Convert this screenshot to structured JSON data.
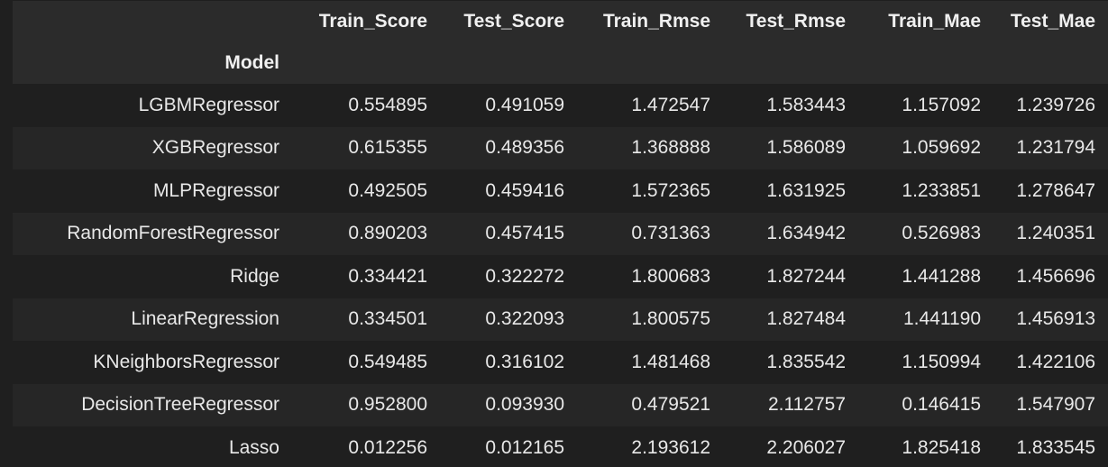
{
  "table": {
    "columns": [
      "Train_Score",
      "Test_Score",
      "Train_Rmse",
      "Test_Rmse",
      "Train_Mae",
      "Test_Mae"
    ],
    "index_name": "Model",
    "rows": [
      {
        "model": "LGBMRegressor",
        "values": [
          "0.554895",
          "0.491059",
          "1.472547",
          "1.583443",
          "1.157092",
          "1.239726"
        ]
      },
      {
        "model": "XGBRegressor",
        "values": [
          "0.615355",
          "0.489356",
          "1.368888",
          "1.586089",
          "1.059692",
          "1.231794"
        ]
      },
      {
        "model": "MLPRegressor",
        "values": [
          "0.492505",
          "0.459416",
          "1.572365",
          "1.631925",
          "1.233851",
          "1.278647"
        ]
      },
      {
        "model": "RandomForestRegressor",
        "values": [
          "0.890203",
          "0.457415",
          "0.731363",
          "1.634942",
          "0.526983",
          "1.240351"
        ]
      },
      {
        "model": "Ridge",
        "values": [
          "0.334421",
          "0.322272",
          "1.800683",
          "1.827244",
          "1.441288",
          "1.456696"
        ]
      },
      {
        "model": "LinearRegression",
        "values": [
          "0.334501",
          "0.322093",
          "1.800575",
          "1.827484",
          "1.441190",
          "1.456913"
        ]
      },
      {
        "model": "KNeighborsRegressor",
        "values": [
          "0.549485",
          "0.316102",
          "1.481468",
          "1.835542",
          "1.150994",
          "1.422106"
        ]
      },
      {
        "model": "DecisionTreeRegressor",
        "values": [
          "0.952800",
          "0.093930",
          "0.479521",
          "2.112757",
          "0.146415",
          "1.547907"
        ]
      },
      {
        "model": "Lasso",
        "values": [
          "0.012256",
          "0.012165",
          "2.193612",
          "2.206027",
          "1.825418",
          "1.833545"
        ]
      }
    ]
  },
  "colors": {
    "background": "#1f1f1f",
    "header_background": "#2b2b2b",
    "alt_row_background": "#262626",
    "text": "#e6e6e6"
  }
}
